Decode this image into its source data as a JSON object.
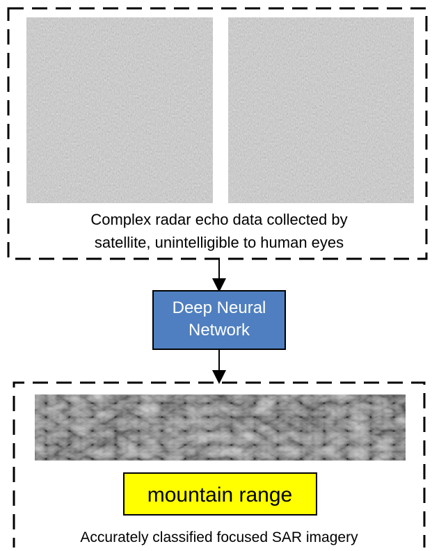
{
  "top_panel": {
    "caption": [
      "Complex radar echo data collected by",
      "satellite, unintelligible to human eyes"
    ]
  },
  "network": {
    "label": [
      "Deep Neural",
      "Network"
    ]
  },
  "bottom_panel": {
    "class_label": "mountain range",
    "caption": "Accurately classified focused SAR imagery"
  }
}
